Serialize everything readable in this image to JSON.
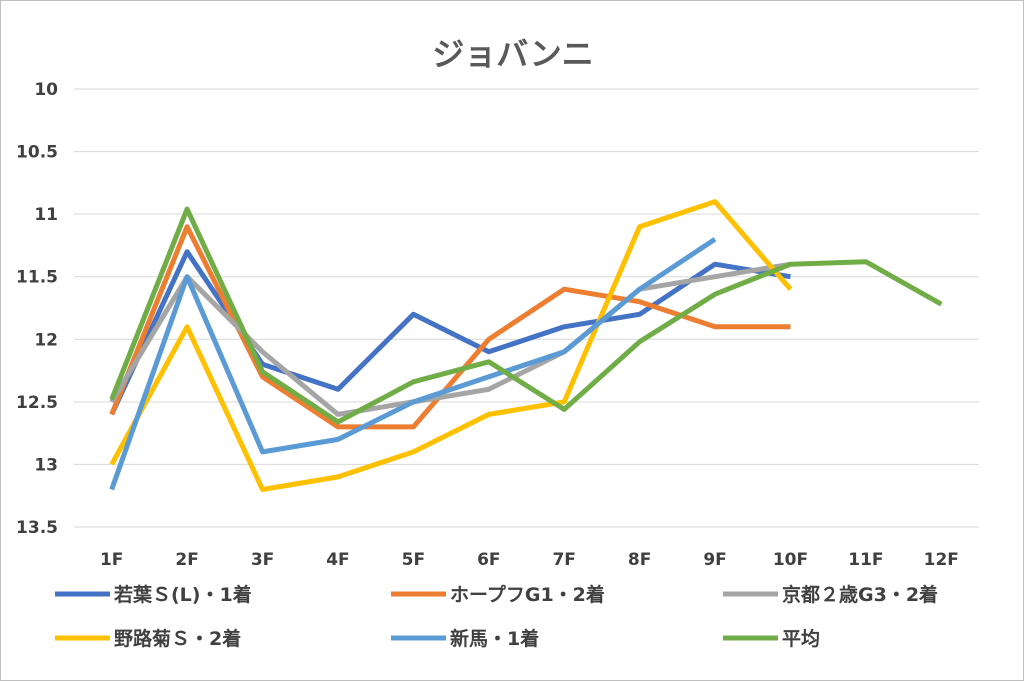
{
  "chart_data": {
    "type": "line",
    "title": "ジョバンニ",
    "categories": [
      "1F",
      "2F",
      "3F",
      "4F",
      "5F",
      "6F",
      "7F",
      "8F",
      "9F",
      "10F",
      "11F",
      "12F"
    ],
    "y_axis": {
      "reversed": true,
      "ylim": [
        10,
        13.5
      ],
      "ticks": [
        10,
        10.5,
        11,
        11.5,
        12,
        12.5,
        13,
        13.5
      ],
      "tick_labels": [
        "10",
        "10.5",
        "11",
        "11.5",
        "12",
        "12.5",
        "13",
        "13.5"
      ]
    },
    "grid": true,
    "legend_position": "bottom",
    "series": [
      {
        "name": "若葉Ｓ(L)・1着",
        "color": "#4472c4",
        "values": [
          12.6,
          11.3,
          12.2,
          12.4,
          11.8,
          12.1,
          11.9,
          11.8,
          11.4,
          11.5,
          null,
          null
        ]
      },
      {
        "name": "ホープフG1・2着",
        "color": "#ed7d31",
        "values": [
          12.6,
          11.1,
          12.3,
          12.7,
          12.7,
          12.0,
          11.6,
          11.7,
          11.9,
          11.9,
          null,
          null
        ]
      },
      {
        "name": "京都２歳G3・2着",
        "color": "#a5a5a5",
        "values": [
          12.5,
          11.5,
          12.1,
          12.6,
          12.5,
          12.4,
          12.1,
          11.6,
          11.5,
          11.4,
          null,
          null
        ]
      },
      {
        "name": "野路菊Ｓ・2着",
        "color": "#ffc000",
        "values": [
          13.0,
          11.9,
          13.2,
          13.1,
          12.9,
          12.6,
          12.5,
          11.1,
          10.9,
          11.6,
          null,
          null
        ]
      },
      {
        "name": "新馬・1着",
        "color": "#5b9bd5",
        "values": [
          13.2,
          11.5,
          12.9,
          12.8,
          12.5,
          12.3,
          12.1,
          11.6,
          11.2,
          null,
          null,
          null
        ]
      },
      {
        "name": "平均",
        "color": "#70ad47",
        "values": [
          12.48,
          10.96,
          12.26,
          12.66,
          12.34,
          12.18,
          12.56,
          12.02,
          11.64,
          11.4,
          11.38,
          11.72
        ]
      }
    ]
  }
}
